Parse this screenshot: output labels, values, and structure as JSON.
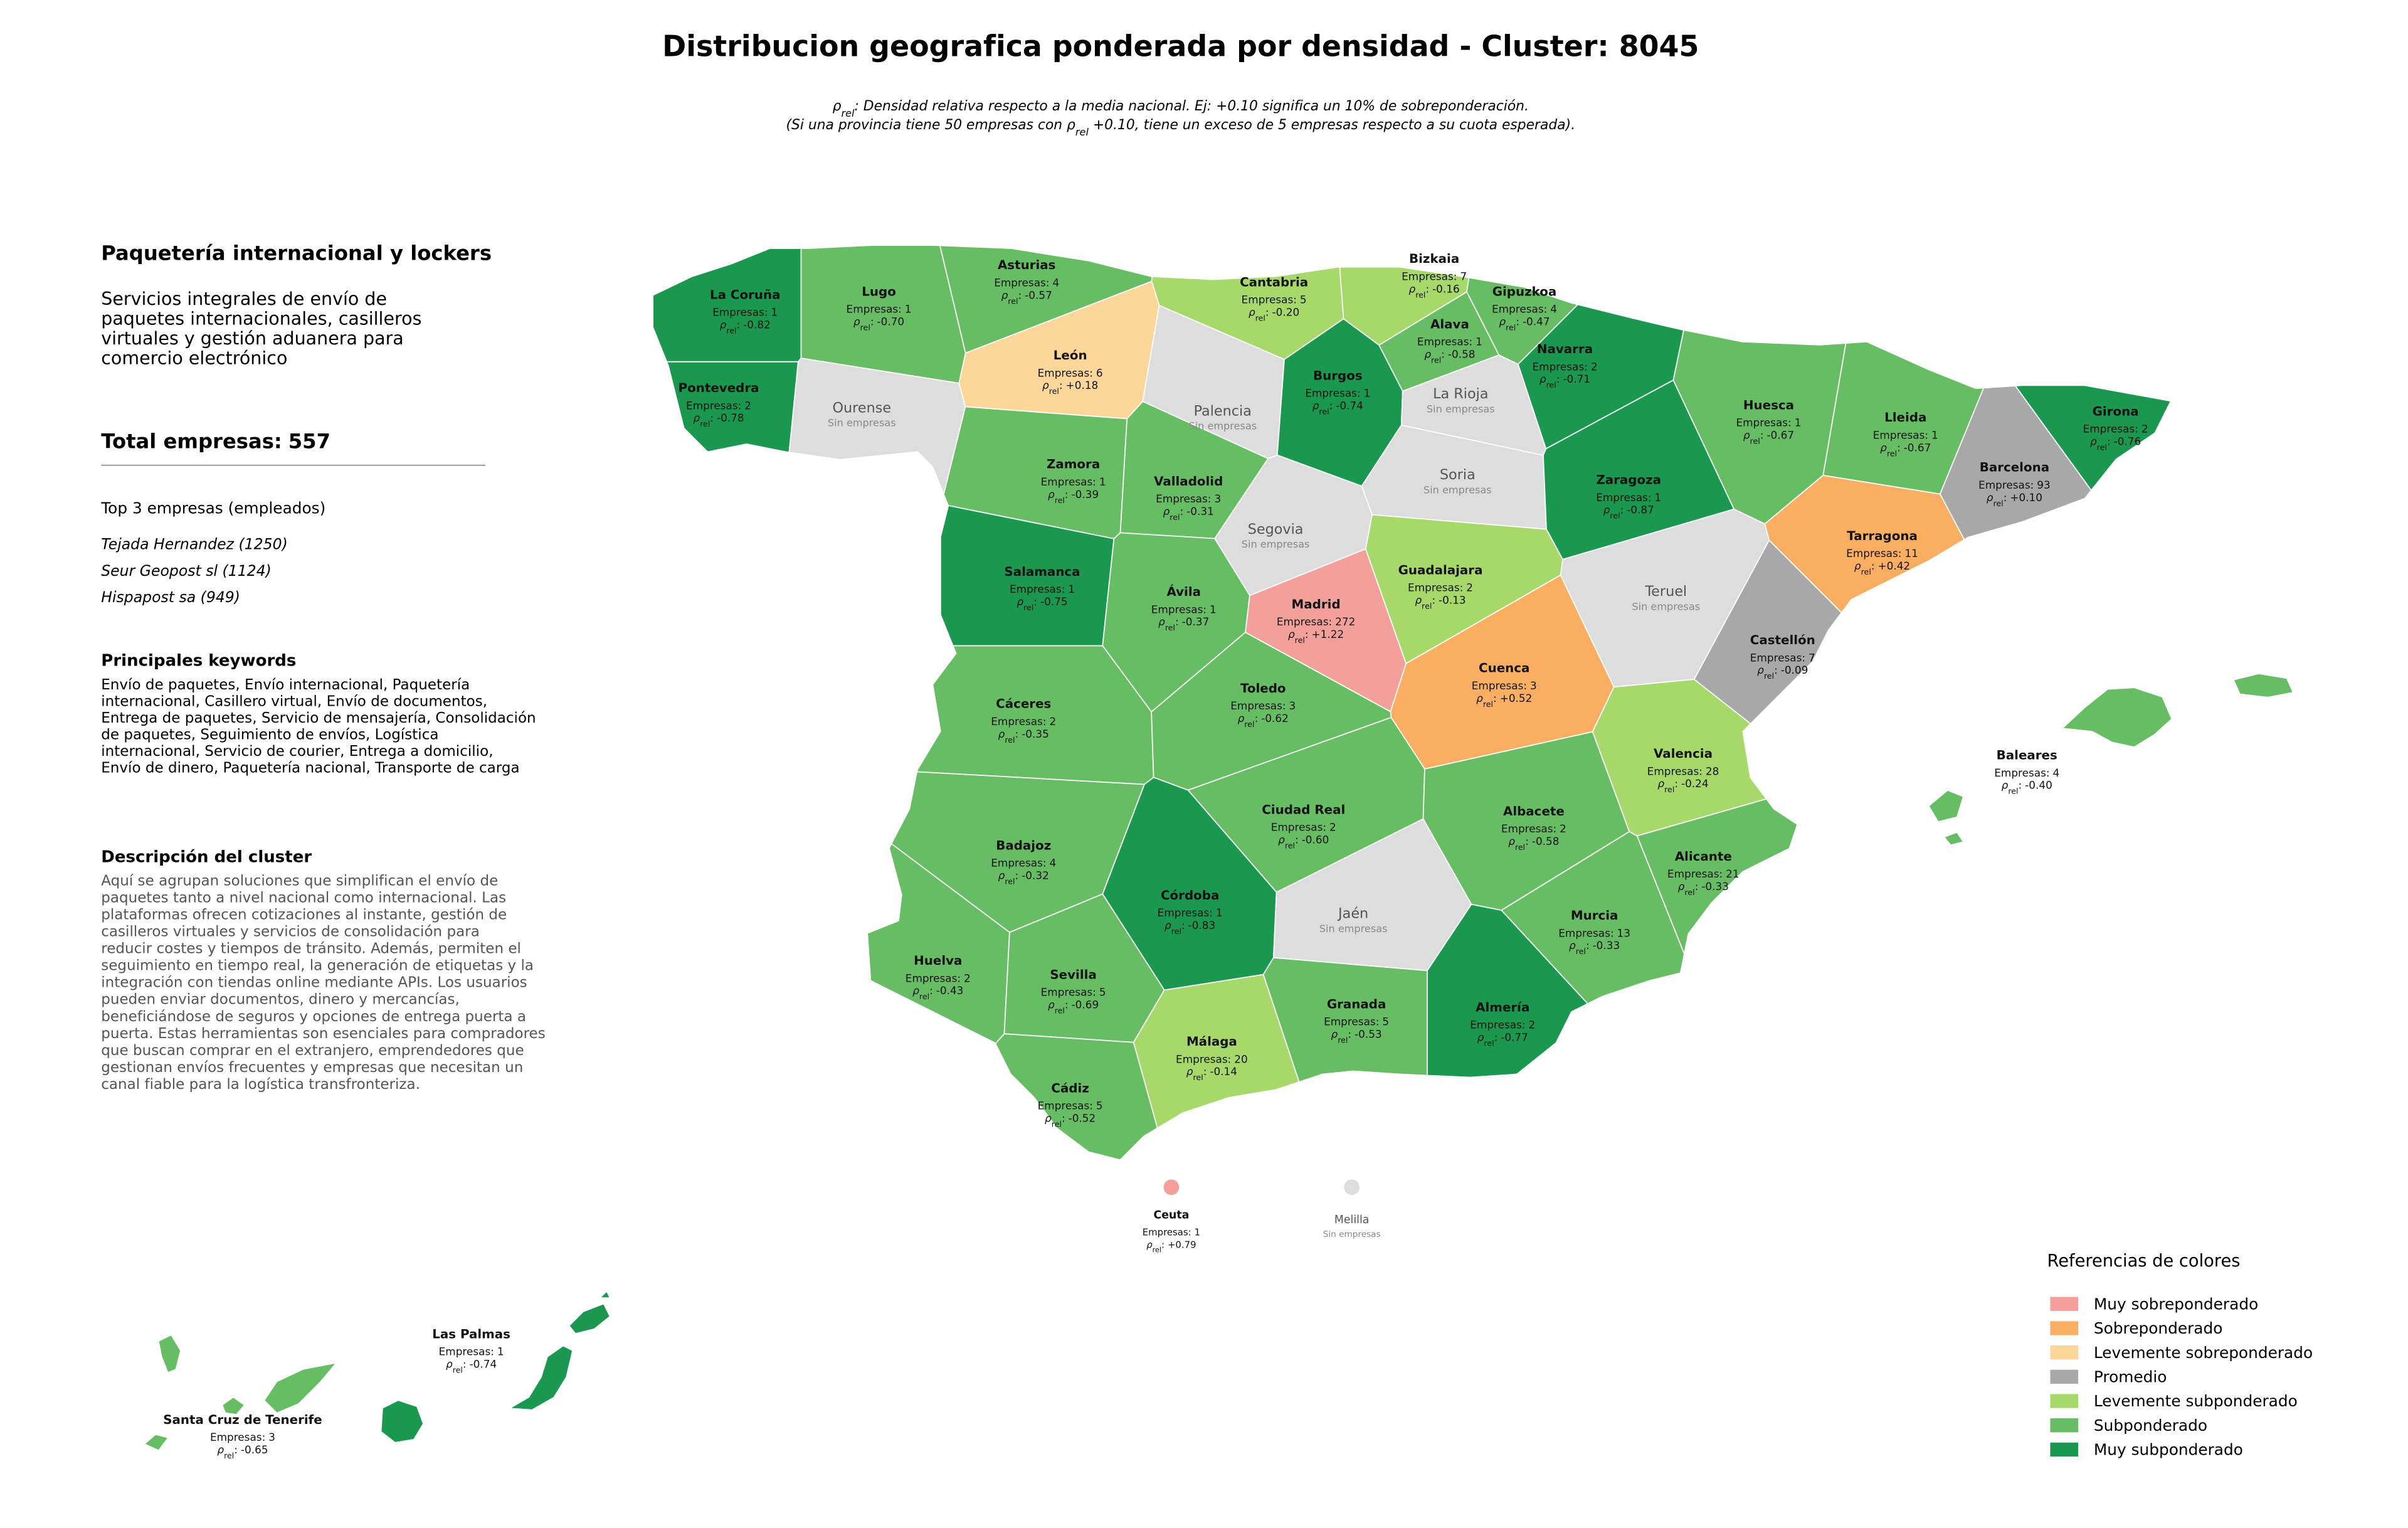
{
  "title": "Distribucion geografica ponderada por densidad - Cluster: 8045",
  "note": {
    "line1": ": Densidad relativa respecto a la media nacional. Ej: +0.10 significa un 10% de sobreponderación.",
    "line2_before": "(Si una provincia tiene 50 empresas con ",
    "line2_after": " +0.10, tiene un exceso de 5 empresas respecto a su cuota esperada)."
  },
  "panel": {
    "sector_title": "Paquetería internacional y lockers",
    "sector_description": [
      "Servicios integrales de envío de",
      "paquetes internacionales, casilleros",
      "virtuales y gestión aduanera para",
      "comercio electrónico"
    ],
    "total_label": "Total empresas:",
    "total": 557,
    "top_title": "Top 3 empresas (empleados)",
    "top": [
      "Tejada Hernandez (1250)",
      "Seur Geopost sl (1124)",
      "Hispapost sa (949)"
    ],
    "keywords_title": "Principales keywords",
    "keywords": [
      "Envío de paquetes, Envío internacional, Paquetería",
      "internacional, Casillero virtual, Envío de documentos,",
      "Entrega de paquetes, Servicio de mensajería, Consolidación",
      "de paquetes, Seguimiento de envíos, Logística",
      "internacional, Servicio de courier, Entrega a domicilio,",
      "Envío de dinero, Paquetería nacional, Transporte de carga"
    ],
    "cluster_title": "Descripción del cluster",
    "cluster_description": [
      "Aquí se agrupan soluciones que simplifican el envío de",
      "paquetes tanto a nivel nacional como internacional. Las",
      "plataformas ofrecen cotizaciones al instante, gestión de",
      "casilleros virtuales y servicios de consolidación para",
      "reducir costes y tiempos de tránsito. Además, permiten el",
      "seguimiento en tiempo real, la generación de etiquetas y la",
      "integración con tiendas online mediante APIs. Los usuarios",
      "pueden enviar documentos, dinero y mercancías,",
      "beneficiándose de seguros y opciones de entrega puerta a",
      "puerta. Estas herramientas son esenciales para compradores",
      "que buscan comprar en el extranjero, emprendedores que",
      "gestionan envíos frecuentes y empresas que necesitan un",
      "canal fiable para la logística transfronteriza."
    ]
  },
  "map": {
    "empresas_label": "Empresas:",
    "rho_symbol": "ρ",
    "rho_subscript": "rel",
    "rho_colon": ":",
    "no_data_label": "Sin empresas",
    "no_data_color": "#dddddd",
    "provinces": [
      {
        "name": "La Coruña",
        "empresas": 1,
        "rho": "-0.82",
        "level": 6
      },
      {
        "name": "Lugo",
        "empresas": 1,
        "rho": "-0.70",
        "level": 5
      },
      {
        "name": "Asturias",
        "empresas": 4,
        "rho": "-0.57",
        "level": 5
      },
      {
        "name": "Cantabria",
        "empresas": 5,
        "rho": "-0.20",
        "level": 4
      },
      {
        "name": "Bizkaia",
        "empresas": 7,
        "rho": "-0.16",
        "level": 4
      },
      {
        "name": "Gipuzkoa",
        "empresas": 4,
        "rho": "-0.47",
        "level": 5
      },
      {
        "name": "Alava",
        "empresas": 1,
        "rho": "-0.58",
        "level": 5
      },
      {
        "name": "Navarra",
        "empresas": 2,
        "rho": "-0.71",
        "level": 6
      },
      {
        "name": "Pontevedra",
        "empresas": 2,
        "rho": "-0.78",
        "level": 6
      },
      {
        "name": "Ourense"
      },
      {
        "name": "León",
        "empresas": 6,
        "rho": "+0.18",
        "level": 2
      },
      {
        "name": "Palencia"
      },
      {
        "name": "Burgos",
        "empresas": 1,
        "rho": "-0.74",
        "level": 6
      },
      {
        "name": "La Rioja"
      },
      {
        "name": "Soria"
      },
      {
        "name": "Zaragoza",
        "empresas": 1,
        "rho": "-0.87",
        "level": 6
      },
      {
        "name": "Huesca",
        "empresas": 1,
        "rho": "-0.67",
        "level": 5
      },
      {
        "name": "Lleida",
        "empresas": 1,
        "rho": "-0.67",
        "level": 5
      },
      {
        "name": "Girona",
        "empresas": 2,
        "rho": "-0.76",
        "level": 6
      },
      {
        "name": "Barcelona",
        "empresas": 93,
        "rho": "+0.10",
        "level": 3
      },
      {
        "name": "Tarragona",
        "empresas": 11,
        "rho": "+0.42",
        "level": 1
      },
      {
        "name": "Zamora",
        "empresas": 1,
        "rho": "-0.39",
        "level": 5
      },
      {
        "name": "Valladolid",
        "empresas": 3,
        "rho": "-0.31",
        "level": 5
      },
      {
        "name": "Segovia"
      },
      {
        "name": "Salamanca",
        "empresas": 1,
        "rho": "-0.75",
        "level": 6
      },
      {
        "name": "Ávila",
        "empresas": 1,
        "rho": "-0.37",
        "level": 5
      },
      {
        "name": "Madrid",
        "empresas": 272,
        "rho": "+1.22",
        "level": 0
      },
      {
        "name": "Guadalajara",
        "empresas": 2,
        "rho": "-0.13",
        "level": 4
      },
      {
        "name": "Teruel"
      },
      {
        "name": "Castellón",
        "empresas": 7,
        "rho": "-0.09",
        "level": 3
      },
      {
        "name": "Cuenca",
        "empresas": 3,
        "rho": "+0.52",
        "level": 1
      },
      {
        "name": "Cáceres",
        "empresas": 2,
        "rho": "-0.35",
        "level": 5
      },
      {
        "name": "Toledo",
        "empresas": 3,
        "rho": "-0.62",
        "level": 5
      },
      {
        "name": "Valencia",
        "empresas": 28,
        "rho": "-0.24",
        "level": 4
      },
      {
        "name": "Ciudad Real",
        "empresas": 2,
        "rho": "-0.60",
        "level": 5
      },
      {
        "name": "Albacete",
        "empresas": 2,
        "rho": "-0.58",
        "level": 5
      },
      {
        "name": "Badajoz",
        "empresas": 4,
        "rho": "-0.32",
        "level": 5
      },
      {
        "name": "Alicante",
        "empresas": 21,
        "rho": "-0.33",
        "level": 5
      },
      {
        "name": "Córdoba",
        "empresas": 1,
        "rho": "-0.83",
        "level": 6
      },
      {
        "name": "Jaén"
      },
      {
        "name": "Murcia",
        "empresas": 13,
        "rho": "-0.33",
        "level": 5
      },
      {
        "name": "Huelva",
        "empresas": 2,
        "rho": "-0.43",
        "level": 5
      },
      {
        "name": "Sevilla",
        "empresas": 5,
        "rho": "-0.69",
        "level": 5
      },
      {
        "name": "Granada",
        "empresas": 5,
        "rho": "-0.53",
        "level": 5
      },
      {
        "name": "Almería",
        "empresas": 2,
        "rho": "-0.77",
        "level": 6
      },
      {
        "name": "Málaga",
        "empresas": 20,
        "rho": "-0.14",
        "level": 4
      },
      {
        "name": "Cádiz",
        "empresas": 5,
        "rho": "-0.52",
        "level": 5
      },
      {
        "name": "Baleares",
        "empresas": 4,
        "rho": "-0.40",
        "level": 5
      },
      {
        "name": "Las Palmas",
        "empresas": 1,
        "rho": "-0.74",
        "level": 6
      },
      {
        "name": "Santa Cruz de Tenerife",
        "empresas": 3,
        "rho": "-0.65",
        "level": 5
      },
      {
        "name": "Ceuta",
        "empresas": 1,
        "rho": "+0.79",
        "level": 0
      },
      {
        "name": "Melilla"
      }
    ]
  },
  "legend": {
    "title": "Referencias de colores",
    "items": [
      {
        "name": "Muy sobreponderado",
        "color": "#f4a09a"
      },
      {
        "name": "Sobreponderado",
        "color": "#f9ae61"
      },
      {
        "name": "Levemente sobreponderado",
        "color": "#fdd79a"
      },
      {
        "name": "Promedio",
        "color": "#a8a8a8"
      },
      {
        "name": "Levemente subponderado",
        "color": "#a6d96a"
      },
      {
        "name": "Subponderado",
        "color": "#66bd63"
      },
      {
        "name": "Muy subponderado",
        "color": "#1a9850"
      }
    ]
  }
}
